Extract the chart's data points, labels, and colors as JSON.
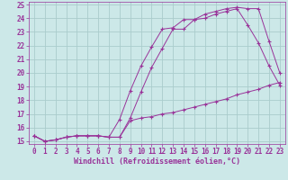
{
  "xlabel": "Windchill (Refroidissement éolien,°C)",
  "background_color": "#cce8e8",
  "grid_color": "#aacccc",
  "line_color": "#993399",
  "xlim": [
    -0.5,
    23.5
  ],
  "ylim": [
    14.8,
    25.2
  ],
  "xticks": [
    0,
    1,
    2,
    3,
    4,
    5,
    6,
    7,
    8,
    9,
    10,
    11,
    12,
    13,
    14,
    15,
    16,
    17,
    18,
    19,
    20,
    21,
    22,
    23
  ],
  "yticks": [
    15,
    16,
    17,
    18,
    19,
    20,
    21,
    22,
    23,
    24,
    25
  ],
  "line1_x": [
    0,
    1,
    2,
    3,
    4,
    5,
    6,
    7,
    8,
    9,
    10,
    11,
    12,
    13,
    14,
    15,
    16,
    17,
    18,
    19,
    20,
    21,
    22,
    23
  ],
  "line1_y": [
    15.4,
    15.0,
    15.1,
    15.3,
    15.4,
    15.4,
    15.4,
    15.3,
    16.6,
    18.7,
    20.5,
    21.9,
    23.2,
    23.3,
    23.9,
    23.9,
    24.3,
    24.5,
    24.7,
    24.8,
    24.7,
    24.7,
    22.3,
    20.0
  ],
  "line2_x": [
    0,
    1,
    2,
    3,
    4,
    5,
    6,
    7,
    8,
    9,
    10,
    11,
    12,
    13,
    14,
    15,
    16,
    17,
    18,
    19,
    20,
    21,
    22,
    23
  ],
  "line2_y": [
    15.4,
    15.0,
    15.1,
    15.3,
    15.4,
    15.4,
    15.4,
    15.3,
    15.3,
    16.7,
    18.6,
    20.4,
    21.8,
    23.2,
    23.2,
    23.9,
    24.0,
    24.3,
    24.5,
    24.7,
    23.5,
    22.2,
    20.5,
    19.1
  ],
  "line3_x": [
    0,
    1,
    2,
    3,
    4,
    5,
    6,
    7,
    8,
    9,
    10,
    11,
    12,
    13,
    14,
    15,
    16,
    17,
    18,
    19,
    20,
    21,
    22,
    23
  ],
  "line3_y": [
    15.4,
    15.0,
    15.1,
    15.3,
    15.4,
    15.4,
    15.4,
    15.3,
    15.3,
    16.5,
    16.7,
    16.8,
    17.0,
    17.1,
    17.3,
    17.5,
    17.7,
    17.9,
    18.1,
    18.4,
    18.6,
    18.8,
    19.1,
    19.3
  ],
  "tick_fontsize": 5.5,
  "xlabel_fontsize": 6.0
}
